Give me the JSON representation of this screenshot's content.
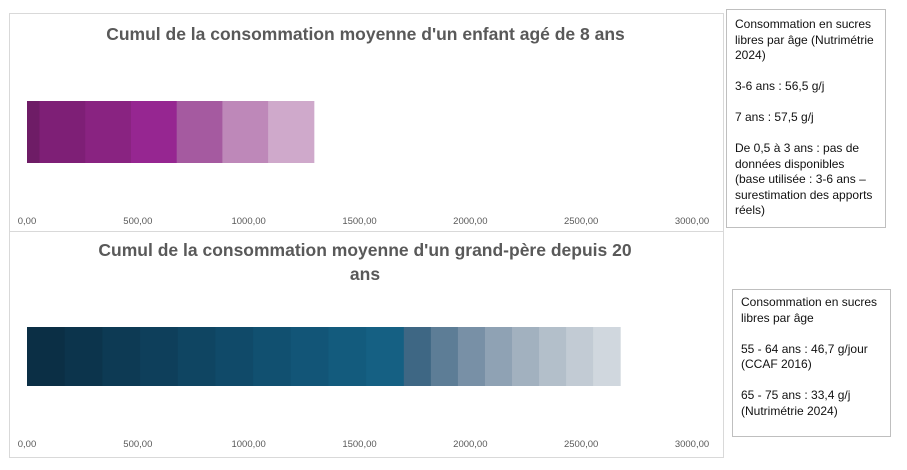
{
  "chart_data": [
    {
      "type": "bar",
      "orientation": "horizontal",
      "stacked": true,
      "title": "Cumul de la consommation moyenne d'un enfant agé de 8 ans",
      "xlim": [
        0,
        3000
      ],
      "ticks": [
        "0,00",
        "500,00",
        "1000,00",
        "1500,00",
        "2000,00",
        "2500,00",
        "3000,00"
      ],
      "series": [
        {
          "values": [
            56.5
          ],
          "color": "#6e1c66"
        },
        {
          "values": [
            206.25
          ],
          "color": "#7e1f76"
        },
        {
          "values": [
            206.25
          ],
          "color": "#892381"
        },
        {
          "values": [
            206.25
          ],
          "color": "#962691"
        },
        {
          "values": [
            206.25
          ],
          "color": "#a55aa0"
        },
        {
          "values": [
            206.25
          ],
          "color": "#be88b9"
        },
        {
          "values": [
            206.25
          ],
          "color": "#cfa9cb"
        }
      ]
    },
    {
      "type": "bar",
      "orientation": "horizontal",
      "stacked": true,
      "title": "Cumul de la consommation moyenne d'un grand-père depuis 20 ans",
      "xlim": [
        0,
        3000
      ],
      "ticks": [
        "0,00",
        "500,00",
        "1000,00",
        "1500,00",
        "2000,00",
        "2500,00",
        "3000,00"
      ],
      "series": [
        {
          "values": [
            170
          ],
          "color": "#0b2f45"
        },
        {
          "values": [
            170
          ],
          "color": "#0c344c"
        },
        {
          "values": [
            170
          ],
          "color": "#0d3a54"
        },
        {
          "values": [
            170
          ],
          "color": "#0e3f5b"
        },
        {
          "values": [
            170
          ],
          "color": "#0f4562"
        },
        {
          "values": [
            170
          ],
          "color": "#104a69"
        },
        {
          "values": [
            170
          ],
          "color": "#115070"
        },
        {
          "values": [
            170
          ],
          "color": "#125577"
        },
        {
          "values": [
            170
          ],
          "color": "#135b7d"
        },
        {
          "values": [
            170
          ],
          "color": "#156083"
        },
        {
          "values": [
            122
          ],
          "color": "#3e6784"
        },
        {
          "values": [
            122
          ],
          "color": "#5d7d96"
        },
        {
          "values": [
            122
          ],
          "color": "#7890a6"
        },
        {
          "values": [
            122
          ],
          "color": "#8fa2b4"
        },
        {
          "values": [
            122
          ],
          "color": "#a2b1bf"
        },
        {
          "values": [
            122
          ],
          "color": "#b3bfca"
        },
        {
          "values": [
            122
          ],
          "color": "#c2cbd4"
        },
        {
          "values": [
            122
          ],
          "color": "#d0d7de"
        }
      ]
    }
  ],
  "notes": {
    "child": {
      "line1": "Consommation en sucres libres par âge (Nutrimétrie 2024)",
      "line2": "3-6 ans : 56,5 g/j",
      "line3": "7 ans : 57,5 g/j",
      "line4": "De 0,5 à 3 ans : pas de données disponibles (base utilisée : 3-6 ans – surestimation des apports réels)"
    },
    "grandfather": {
      "line1": "Consommation en sucres libres par âge",
      "line2": "55 - 64 ans : 46,7 g/jour (CCAF 2016)",
      "line3": "65 - 75 ans : 33,4 g/j (Nutrimétrie 2024)"
    }
  }
}
